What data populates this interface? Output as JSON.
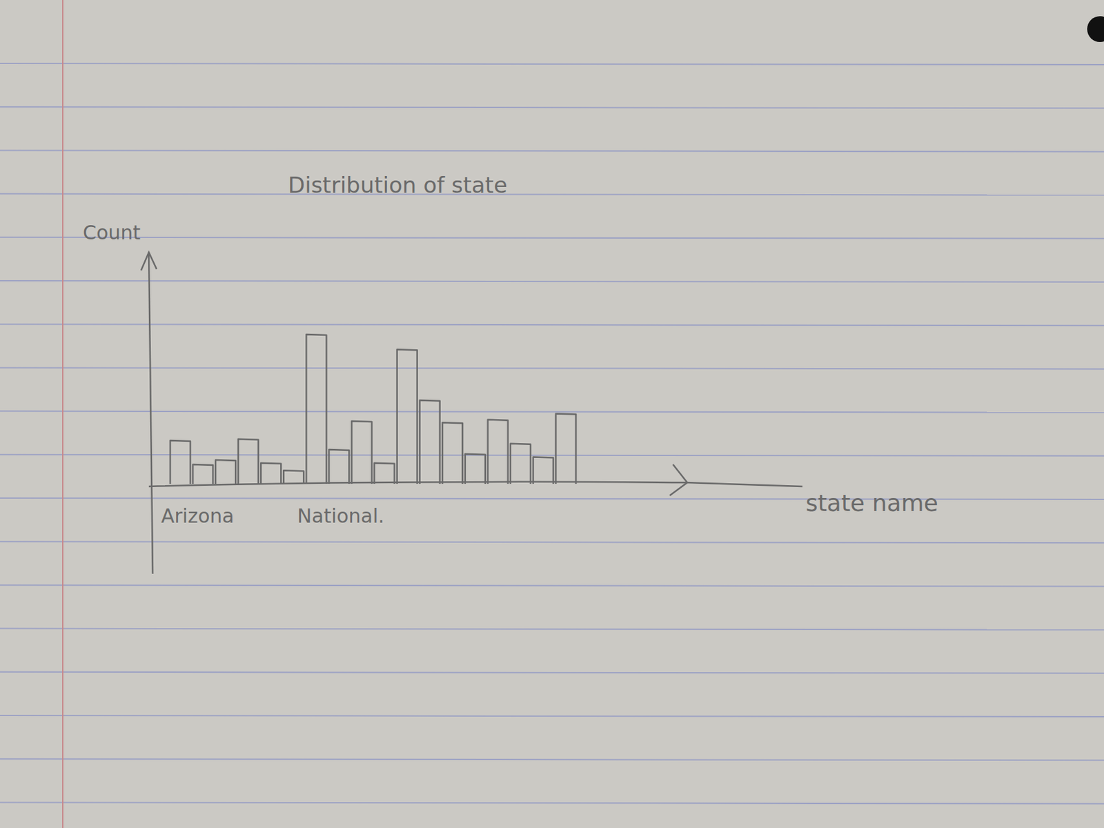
{
  "chart_data": {
    "type": "bar",
    "title": "Distribution of state",
    "x_label": "state name",
    "y_label": "Count",
    "categories": [
      "Arizona",
      null,
      null,
      null,
      null,
      null,
      "National.",
      null,
      null,
      null,
      null,
      null,
      null,
      null,
      null,
      null,
      null,
      null
    ],
    "values": [
      29,
      13,
      16,
      30,
      14,
      9,
      100,
      23,
      42,
      14,
      90,
      56,
      41,
      20,
      43,
      27,
      18,
      47
    ],
    "ylim": [
      0,
      155
    ],
    "yticks": [],
    "tick_labels": "x",
    "color": "#6a6a6a"
  }
}
